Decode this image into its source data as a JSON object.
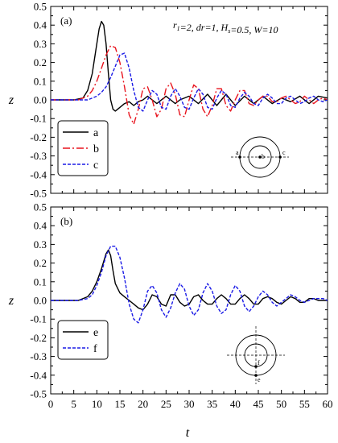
{
  "chart_data": [
    {
      "type": "line",
      "panel_label": "(a)",
      "annotation": "r_1=2, dr=1, H_s=0.5, W=10",
      "ylabel": "z",
      "xlim": [
        0,
        60
      ],
      "ylim": [
        -0.5,
        0.5
      ],
      "xticks": [
        0,
        5,
        10,
        15,
        20,
        25,
        30,
        35,
        40,
        45,
        50,
        55,
        60
      ],
      "yticks": [
        -0.5,
        -0.4,
        -0.3,
        -0.2,
        -0.1,
        0.0,
        0.1,
        0.2,
        0.3,
        0.4,
        0.5
      ],
      "ytick_labels": [
        "-0.5",
        "-0.4",
        "-0.3",
        "-0.2",
        "-0.1",
        "0.0",
        "0.1",
        "0.2",
        "0.3",
        "0.4",
        "0.5"
      ],
      "inset_points": [
        "a",
        "b",
        "c"
      ],
      "series": [
        {
          "name": "a",
          "color": "#000000",
          "dash": "solid",
          "x": [
            0,
            5,
            7,
            8,
            9,
            10,
            10.5,
            11,
            11.5,
            12,
            12.5,
            13,
            13.5,
            14,
            15,
            16,
            17,
            18,
            19,
            20,
            21,
            22,
            23,
            25,
            27,
            28,
            30,
            32,
            34,
            36,
            38,
            40,
            42,
            44,
            46,
            48,
            50,
            52,
            54,
            56,
            58,
            60
          ],
          "y": [
            0,
            0.0,
            0.01,
            0.05,
            0.14,
            0.3,
            0.38,
            0.42,
            0.4,
            0.3,
            0.14,
            0.0,
            -0.05,
            -0.06,
            -0.04,
            -0.02,
            -0.01,
            -0.03,
            -0.01,
            0.0,
            0.02,
            0.0,
            -0.02,
            0.02,
            -0.02,
            0.0,
            0.02,
            -0.02,
            0.03,
            -0.03,
            0.03,
            -0.03,
            0.02,
            -0.02,
            0.02,
            -0.02,
            0.01,
            -0.01,
            0.02,
            -0.02,
            0.02,
            0.01
          ]
        },
        {
          "name": "b",
          "color": "#e8141e",
          "dash": "dashdot",
          "x": [
            0,
            6,
            8,
            9,
            10,
            11,
            12,
            13,
            14,
            15,
            16,
            17,
            18,
            19,
            20,
            21,
            22,
            23,
            24,
            25,
            26,
            27,
            28,
            29,
            30,
            31,
            32,
            33,
            34,
            35,
            36,
            37,
            38,
            39,
            40,
            41,
            42,
            43,
            44,
            45,
            46,
            47,
            48,
            49,
            50,
            51,
            52,
            53,
            54,
            55,
            56,
            57,
            58,
            59,
            60
          ],
          "y": [
            0,
            0.0,
            0.02,
            0.05,
            0.1,
            0.17,
            0.24,
            0.29,
            0.28,
            0.2,
            0.07,
            -0.08,
            -0.13,
            -0.05,
            0.06,
            0.07,
            0.0,
            -0.09,
            -0.05,
            0.06,
            0.09,
            0.03,
            -0.08,
            -0.09,
            0.0,
            0.08,
            0.06,
            -0.05,
            -0.09,
            -0.03,
            0.06,
            0.06,
            -0.03,
            -0.06,
            0.0,
            0.05,
            0.05,
            -0.02,
            -0.03,
            0.0,
            0.02,
            0.02,
            -0.01,
            -0.01,
            0.01,
            0.02,
            0.0,
            -0.02,
            -0.01,
            0.02,
            0.0,
            -0.02,
            0.0,
            0.01,
            0.0
          ]
        },
        {
          "name": "c",
          "color": "#1a1ae6",
          "dash": "dashed",
          "x": [
            0,
            8,
            10,
            11,
            12,
            13,
            14,
            15,
            16,
            17,
            18,
            19,
            20,
            21,
            22,
            23,
            24,
            25,
            26,
            27,
            28,
            29,
            30,
            31,
            32,
            33,
            34,
            35,
            36,
            37,
            38,
            39,
            40,
            41,
            42,
            43,
            44,
            45,
            46,
            47,
            48,
            49,
            50,
            51,
            52,
            53,
            54,
            55,
            56,
            57,
            58,
            59,
            60
          ],
          "y": [
            0,
            0.0,
            0.02,
            0.04,
            0.07,
            0.12,
            0.18,
            0.24,
            0.25,
            0.17,
            0.05,
            -0.04,
            -0.06,
            0.0,
            0.05,
            0.03,
            -0.04,
            -0.05,
            0.02,
            0.06,
            0.02,
            -0.04,
            -0.05,
            0.01,
            0.06,
            0.03,
            -0.04,
            -0.05,
            0.01,
            0.05,
            0.03,
            -0.03,
            -0.04,
            0.01,
            0.04,
            0.02,
            -0.02,
            -0.03,
            0.01,
            0.03,
            0.01,
            -0.02,
            -0.02,
            0.01,
            0.02,
            0.0,
            -0.02,
            -0.01,
            0.01,
            0.02,
            0.0,
            -0.01,
            0.0
          ]
        }
      ]
    },
    {
      "type": "line",
      "panel_label": "(b)",
      "xlabel": "t",
      "ylabel": "z",
      "xlim": [
        0,
        60
      ],
      "ylim": [
        -0.5,
        0.5
      ],
      "xticks": [
        0,
        5,
        10,
        15,
        20,
        25,
        30,
        35,
        40,
        45,
        50,
        55,
        60
      ],
      "yticks": [
        -0.5,
        -0.4,
        -0.3,
        -0.2,
        -0.1,
        0.0,
        0.1,
        0.2,
        0.3,
        0.4,
        0.5
      ],
      "ytick_labels": [
        "-0.5",
        "-0.4",
        "-0.3",
        "-0.2",
        "-0.1",
        "0.0",
        "0.1",
        "0.2",
        "0.3",
        "0.4",
        "0.5"
      ],
      "inset_points": [
        "f",
        "e"
      ],
      "series": [
        {
          "name": "e",
          "color": "#000000",
          "dash": "solid",
          "x": [
            0,
            6,
            8,
            9,
            10,
            11,
            12,
            12.5,
            13,
            13.5,
            14,
            15,
            16,
            17,
            18,
            19,
            20,
            21,
            22,
            23,
            24,
            25,
            26,
            27,
            28,
            29,
            30,
            31,
            32,
            33,
            34,
            35,
            36,
            37,
            38,
            39,
            40,
            41,
            42,
            43,
            44,
            45,
            46,
            47,
            48,
            49,
            50,
            51,
            52,
            53,
            54,
            55,
            56,
            57,
            58,
            59,
            60
          ],
          "y": [
            0,
            0.0,
            0.02,
            0.05,
            0.1,
            0.17,
            0.25,
            0.27,
            0.24,
            0.16,
            0.09,
            0.04,
            0.02,
            0.0,
            -0.02,
            -0.04,
            -0.05,
            -0.02,
            0.03,
            0.02,
            -0.02,
            -0.03,
            0.03,
            0.03,
            -0.01,
            -0.03,
            -0.02,
            0.02,
            0.03,
            0.0,
            -0.02,
            -0.02,
            0.01,
            0.03,
            0.01,
            -0.02,
            -0.02,
            0.01,
            0.03,
            0.01,
            -0.02,
            -0.02,
            0.01,
            0.02,
            0.01,
            -0.01,
            -0.02,
            0.0,
            0.02,
            0.01,
            -0.01,
            -0.01,
            0.01,
            0.01,
            0.0,
            0.0,
            0.0
          ]
        },
        {
          "name": "f",
          "color": "#1a1ae6",
          "dash": "dashed",
          "x": [
            0,
            6,
            8,
            9,
            10,
            11,
            12,
            13,
            14,
            15,
            16,
            17,
            18,
            19,
            20,
            21,
            22,
            23,
            24,
            25,
            26,
            27,
            28,
            29,
            30,
            31,
            32,
            33,
            34,
            35,
            36,
            37,
            38,
            39,
            40,
            41,
            42,
            43,
            44,
            45,
            46,
            47,
            48,
            49,
            50,
            51,
            52,
            53,
            54,
            55,
            56,
            57,
            58,
            59,
            60
          ],
          "y": [
            0,
            0.0,
            0.01,
            0.03,
            0.08,
            0.15,
            0.24,
            0.29,
            0.29,
            0.23,
            0.12,
            -0.02,
            -0.1,
            -0.12,
            -0.05,
            0.05,
            0.08,
            0.04,
            -0.05,
            -0.09,
            -0.04,
            0.04,
            0.09,
            0.06,
            -0.03,
            -0.08,
            -0.05,
            0.04,
            0.09,
            0.05,
            -0.03,
            -0.07,
            -0.05,
            0.03,
            0.08,
            0.05,
            -0.03,
            -0.06,
            -0.03,
            0.02,
            0.05,
            0.03,
            -0.01,
            -0.03,
            -0.01,
            0.01,
            0.03,
            0.02,
            0.0,
            -0.01,
            0.0,
            0.01,
            0.01,
            0.01,
            0.0
          ]
        }
      ]
    }
  ]
}
